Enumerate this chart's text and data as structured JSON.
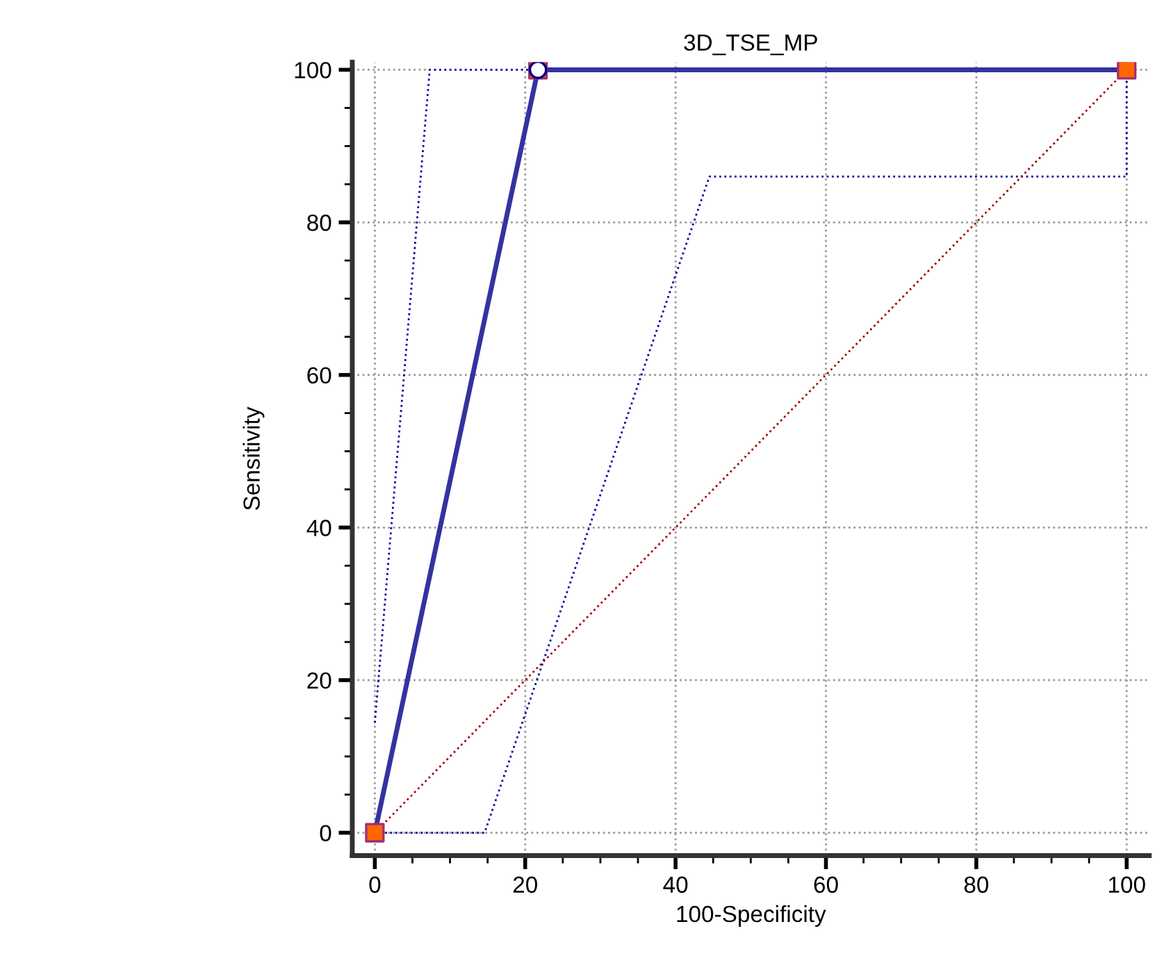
{
  "chart_data": {
    "type": "line",
    "title": "3D_TSE_MP",
    "xlabel": "100-Specificity",
    "ylabel": "Sensitivity",
    "xlim": [
      -3,
      103
    ],
    "ylim": [
      -3,
      101
    ],
    "xticks": [
      0,
      20,
      40,
      60,
      80,
      100
    ],
    "yticks": [
      0,
      20,
      40,
      60,
      80,
      100
    ],
    "grid": true,
    "series": [
      {
        "color": "#0000a0",
        "x": [
          0,
          7.3,
          100
        ],
        "values": [
          14.4,
          100,
          100
        ],
        "line_style": "dotted",
        "marker": "none"
      },
      {
        "color": "#0000a0",
        "x": [
          0,
          14.6,
          44.5,
          100,
          100
        ],
        "values": [
          0,
          0,
          86,
          86,
          100
        ],
        "line_style": "dotted",
        "marker": "none"
      },
      {
        "color": "#a00000",
        "x": [
          0,
          100
        ],
        "values": [
          0,
          100
        ],
        "line_style": "dotted",
        "marker": "none"
      },
      {
        "color": "#3333a0",
        "x": [
          0,
          21.7,
          100
        ],
        "values": [
          0,
          100,
          100
        ],
        "line_style": "solid",
        "marker": "none"
      },
      {
        "type": "scatter",
        "color": "#ff6600",
        "x": [
          0,
          21.7,
          100
        ],
        "values": [
          0,
          100,
          100
        ],
        "marker": "square"
      },
      {
        "type": "scatter",
        "color": "#ffffff",
        "x": [
          21.7
        ],
        "values": [
          100
        ],
        "marker": "circle"
      }
    ]
  }
}
